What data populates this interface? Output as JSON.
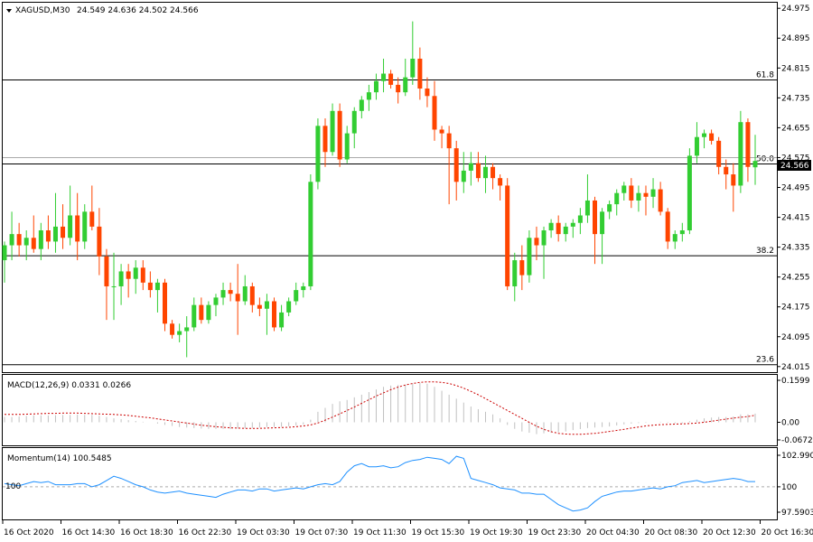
{
  "main": {
    "symbol": "XAGUSD,M30",
    "ohlc": "24.549 24.636 24.502 24.566",
    "current_price": "24.566",
    "price_labels": [
      "24.975",
      "24.895",
      "24.815",
      "24.735",
      "24.655",
      "24.575",
      "24.495",
      "24.415",
      "24.335",
      "24.255",
      "24.175",
      "24.095",
      "24.015"
    ],
    "fib_levels": [
      {
        "label": "61.8",
        "price": 24.783
      },
      {
        "label": "50.0",
        "price": 24.558
      },
      {
        "label": "38.2",
        "price": 24.312
      },
      {
        "label": "23.6",
        "price": 24.02
      }
    ]
  },
  "macd": {
    "title": "MACD(12,26,9) 0.0331 0.0266",
    "labels": [
      "0.1599",
      "0.00",
      "-0.0672"
    ]
  },
  "momentum": {
    "title": "Momentum(14) 100.5485",
    "labels": [
      "102.9903",
      "100",
      "97.5903"
    ],
    "level_label": "100"
  },
  "time_labels": [
    "16 Oct 2020",
    "16 Oct 14:30",
    "16 Oct 18:30",
    "16 Oct 22:30",
    "19 Oct 03:30",
    "19 Oct 07:30",
    "19 Oct 11:30",
    "19 Oct 15:30",
    "19 Oct 19:30",
    "19 Oct 23:30",
    "20 Oct 04:30",
    "20 Oct 08:30",
    "20 Oct 12:30",
    "20 Oct 16:30"
  ],
  "colors": {
    "bull": "#32cd32",
    "bear": "#ff4500",
    "signal": "#cc0000",
    "histogram": "#c0c0c0",
    "momentum": "#1e90ff",
    "frame": "#000000"
  },
  "chart_data": [
    {
      "type": "candlestick",
      "title": "XAGUSD,M30",
      "ylim": [
        24.0,
        24.99
      ],
      "candles": [
        {
          "o": 24.3,
          "h": 24.35,
          "l": 24.24,
          "c": 24.34
        },
        {
          "o": 24.34,
          "h": 24.43,
          "l": 24.3,
          "c": 24.37
        },
        {
          "o": 24.37,
          "h": 24.4,
          "l": 24.31,
          "c": 24.34
        },
        {
          "o": 24.34,
          "h": 24.38,
          "l": 24.3,
          "c": 24.36
        },
        {
          "o": 24.36,
          "h": 24.42,
          "l": 24.32,
          "c": 24.33
        },
        {
          "o": 24.33,
          "h": 24.4,
          "l": 24.3,
          "c": 24.38
        },
        {
          "o": 24.38,
          "h": 24.42,
          "l": 24.33,
          "c": 24.35
        },
        {
          "o": 24.35,
          "h": 24.48,
          "l": 24.32,
          "c": 24.39
        },
        {
          "o": 24.39,
          "h": 24.45,
          "l": 24.33,
          "c": 24.36
        },
        {
          "o": 24.36,
          "h": 24.5,
          "l": 24.34,
          "c": 24.42
        },
        {
          "o": 24.42,
          "h": 24.48,
          "l": 24.3,
          "c": 24.35
        },
        {
          "o": 24.35,
          "h": 24.45,
          "l": 24.33,
          "c": 24.43
        },
        {
          "o": 24.43,
          "h": 24.5,
          "l": 24.38,
          "c": 24.39
        },
        {
          "o": 24.39,
          "h": 24.44,
          "l": 24.26,
          "c": 24.31
        },
        {
          "o": 24.31,
          "h": 24.33,
          "l": 24.14,
          "c": 24.23
        },
        {
          "o": 24.23,
          "h": 24.32,
          "l": 24.14,
          "c": 24.23
        },
        {
          "o": 24.23,
          "h": 24.29,
          "l": 24.18,
          "c": 24.27
        },
        {
          "o": 24.27,
          "h": 24.29,
          "l": 24.2,
          "c": 24.25
        },
        {
          "o": 24.25,
          "h": 24.3,
          "l": 24.21,
          "c": 24.28
        },
        {
          "o": 24.28,
          "h": 24.3,
          "l": 24.22,
          "c": 24.24
        },
        {
          "o": 24.24,
          "h": 24.27,
          "l": 24.2,
          "c": 24.22
        },
        {
          "o": 24.22,
          "h": 24.25,
          "l": 24.16,
          "c": 24.24
        },
        {
          "o": 24.24,
          "h": 24.25,
          "l": 24.11,
          "c": 24.13
        },
        {
          "o": 24.13,
          "h": 24.14,
          "l": 24.09,
          "c": 24.1
        },
        {
          "o": 24.1,
          "h": 24.13,
          "l": 24.08,
          "c": 24.11
        },
        {
          "o": 24.11,
          "h": 24.15,
          "l": 24.04,
          "c": 24.12
        },
        {
          "o": 24.12,
          "h": 24.2,
          "l": 24.11,
          "c": 24.18
        },
        {
          "o": 24.18,
          "h": 24.2,
          "l": 24.13,
          "c": 24.14
        },
        {
          "o": 24.14,
          "h": 24.19,
          "l": 24.13,
          "c": 24.18
        },
        {
          "o": 24.18,
          "h": 24.21,
          "l": 24.15,
          "c": 24.2
        },
        {
          "o": 24.2,
          "h": 24.24,
          "l": 24.18,
          "c": 24.22
        },
        {
          "o": 24.22,
          "h": 24.24,
          "l": 24.19,
          "c": 24.21
        },
        {
          "o": 24.21,
          "h": 24.29,
          "l": 24.1,
          "c": 24.19
        },
        {
          "o": 24.19,
          "h": 24.26,
          "l": 24.18,
          "c": 24.23
        },
        {
          "o": 24.23,
          "h": 24.24,
          "l": 24.16,
          "c": 24.18
        },
        {
          "o": 24.18,
          "h": 24.2,
          "l": 24.15,
          "c": 24.17
        },
        {
          "o": 24.17,
          "h": 24.21,
          "l": 24.1,
          "c": 24.19
        },
        {
          "o": 24.19,
          "h": 24.2,
          "l": 24.11,
          "c": 24.12
        },
        {
          "o": 24.12,
          "h": 24.18,
          "l": 24.11,
          "c": 24.16
        },
        {
          "o": 24.16,
          "h": 24.2,
          "l": 24.15,
          "c": 24.19
        },
        {
          "o": 24.19,
          "h": 24.24,
          "l": 24.18,
          "c": 24.22
        },
        {
          "o": 24.22,
          "h": 24.24,
          "l": 24.2,
          "c": 24.23
        },
        {
          "o": 24.23,
          "h": 24.53,
          "l": 24.22,
          "c": 24.51
        },
        {
          "o": 24.51,
          "h": 24.68,
          "l": 24.49,
          "c": 24.66
        },
        {
          "o": 24.66,
          "h": 24.68,
          "l": 24.55,
          "c": 24.59
        },
        {
          "o": 24.59,
          "h": 24.72,
          "l": 24.58,
          "c": 24.7
        },
        {
          "o": 24.7,
          "h": 24.72,
          "l": 24.55,
          "c": 24.57
        },
        {
          "o": 24.57,
          "h": 24.66,
          "l": 24.56,
          "c": 24.64
        },
        {
          "o": 24.64,
          "h": 24.71,
          "l": 24.6,
          "c": 24.7
        },
        {
          "o": 24.7,
          "h": 24.74,
          "l": 24.68,
          "c": 24.73
        },
        {
          "o": 24.73,
          "h": 24.77,
          "l": 24.7,
          "c": 24.75
        },
        {
          "o": 24.75,
          "h": 24.8,
          "l": 24.73,
          "c": 24.78
        },
        {
          "o": 24.78,
          "h": 24.84,
          "l": 24.75,
          "c": 24.8
        },
        {
          "o": 24.8,
          "h": 24.81,
          "l": 24.76,
          "c": 24.77
        },
        {
          "o": 24.77,
          "h": 24.79,
          "l": 24.72,
          "c": 24.75
        },
        {
          "o": 24.75,
          "h": 24.84,
          "l": 24.74,
          "c": 24.79
        },
        {
          "o": 24.79,
          "h": 24.94,
          "l": 24.77,
          "c": 24.84
        },
        {
          "o": 24.84,
          "h": 24.87,
          "l": 24.73,
          "c": 24.76
        },
        {
          "o": 24.76,
          "h": 24.79,
          "l": 24.71,
          "c": 24.74
        },
        {
          "o": 24.74,
          "h": 24.78,
          "l": 24.62,
          "c": 24.65
        },
        {
          "o": 24.65,
          "h": 24.66,
          "l": 24.6,
          "c": 24.64
        },
        {
          "o": 24.64,
          "h": 24.66,
          "l": 24.45,
          "c": 24.6
        },
        {
          "o": 24.6,
          "h": 24.62,
          "l": 24.46,
          "c": 24.51
        },
        {
          "o": 24.51,
          "h": 24.59,
          "l": 24.48,
          "c": 24.54
        },
        {
          "o": 24.54,
          "h": 24.59,
          "l": 24.5,
          "c": 24.56
        },
        {
          "o": 24.56,
          "h": 24.59,
          "l": 24.51,
          "c": 24.52
        },
        {
          "o": 24.52,
          "h": 24.58,
          "l": 24.48,
          "c": 24.55
        },
        {
          "o": 24.55,
          "h": 24.56,
          "l": 24.49,
          "c": 24.52
        },
        {
          "o": 24.52,
          "h": 24.53,
          "l": 24.46,
          "c": 24.5
        },
        {
          "o": 24.5,
          "h": 24.52,
          "l": 24.22,
          "c": 24.23
        },
        {
          "o": 24.23,
          "h": 24.32,
          "l": 24.19,
          "c": 24.3
        },
        {
          "o": 24.3,
          "h": 24.34,
          "l": 24.22,
          "c": 24.26
        },
        {
          "o": 24.26,
          "h": 24.38,
          "l": 24.24,
          "c": 24.36
        },
        {
          "o": 24.36,
          "h": 24.39,
          "l": 24.3,
          "c": 24.34
        },
        {
          "o": 24.34,
          "h": 24.39,
          "l": 24.25,
          "c": 24.38
        },
        {
          "o": 24.38,
          "h": 24.41,
          "l": 24.36,
          "c": 24.4
        },
        {
          "o": 24.4,
          "h": 24.42,
          "l": 24.35,
          "c": 24.37
        },
        {
          "o": 24.37,
          "h": 24.4,
          "l": 24.35,
          "c": 24.39
        },
        {
          "o": 24.39,
          "h": 24.41,
          "l": 24.36,
          "c": 24.4
        },
        {
          "o": 24.4,
          "h": 24.44,
          "l": 24.37,
          "c": 24.42
        },
        {
          "o": 24.42,
          "h": 24.53,
          "l": 24.4,
          "c": 24.46
        },
        {
          "o": 24.46,
          "h": 24.47,
          "l": 24.29,
          "c": 24.37
        },
        {
          "o": 24.37,
          "h": 24.44,
          "l": 24.29,
          "c": 24.43
        },
        {
          "o": 24.43,
          "h": 24.46,
          "l": 24.41,
          "c": 24.45
        },
        {
          "o": 24.45,
          "h": 24.49,
          "l": 24.42,
          "c": 24.48
        },
        {
          "o": 24.48,
          "h": 24.51,
          "l": 24.46,
          "c": 24.5
        },
        {
          "o": 24.5,
          "h": 24.52,
          "l": 24.44,
          "c": 24.46
        },
        {
          "o": 24.46,
          "h": 24.5,
          "l": 24.43,
          "c": 24.48
        },
        {
          "o": 24.48,
          "h": 24.5,
          "l": 24.42,
          "c": 24.47
        },
        {
          "o": 24.47,
          "h": 24.52,
          "l": 24.44,
          "c": 24.49
        },
        {
          "o": 24.49,
          "h": 24.51,
          "l": 24.42,
          "c": 24.43
        },
        {
          "o": 24.43,
          "h": 24.44,
          "l": 24.33,
          "c": 24.35
        },
        {
          "o": 24.35,
          "h": 24.38,
          "l": 24.33,
          "c": 24.37
        },
        {
          "o": 24.37,
          "h": 24.4,
          "l": 24.35,
          "c": 24.38
        },
        {
          "o": 24.38,
          "h": 24.6,
          "l": 24.37,
          "c": 24.58
        },
        {
          "o": 24.58,
          "h": 24.67,
          "l": 24.56,
          "c": 24.63
        },
        {
          "o": 24.63,
          "h": 24.65,
          "l": 24.6,
          "c": 24.64
        },
        {
          "o": 24.64,
          "h": 24.65,
          "l": 24.61,
          "c": 24.62
        },
        {
          "o": 24.62,
          "h": 24.63,
          "l": 24.53,
          "c": 24.55
        },
        {
          "o": 24.55,
          "h": 24.57,
          "l": 24.49,
          "c": 24.53
        },
        {
          "o": 24.53,
          "h": 24.56,
          "l": 24.43,
          "c": 24.5
        },
        {
          "o": 24.5,
          "h": 24.7,
          "l": 24.48,
          "c": 24.67
        },
        {
          "o": 24.67,
          "h": 24.68,
          "l": 24.51,
          "c": 24.55
        },
        {
          "o": 24.549,
          "h": 24.636,
          "l": 24.502,
          "c": 24.566
        }
      ]
    },
    {
      "type": "bar",
      "title": "MACD(12,26,9) 0.0331 0.0266",
      "ylim": [
        -0.0672,
        0.1599
      ],
      "series": [
        {
          "name": "MACD",
          "values": [
            0.02,
            0.02,
            0.022,
            0.024,
            0.026,
            0.026,
            0.026,
            0.027,
            0.028,
            0.028,
            0.029,
            0.028,
            0.028,
            0.025,
            0.02,
            0.015,
            0.012,
            0.008,
            0.005,
            0.002,
            0.0,
            -0.005,
            -0.01,
            -0.014,
            -0.018,
            -0.02,
            -0.022,
            -0.024,
            -0.025,
            -0.025,
            -0.025,
            -0.026,
            -0.024,
            -0.023,
            -0.022,
            -0.02,
            -0.018,
            -0.018,
            -0.017,
            -0.015,
            -0.012,
            -0.008,
            0.01,
            0.04,
            0.055,
            0.07,
            0.08,
            0.085,
            0.095,
            0.105,
            0.115,
            0.125,
            0.135,
            0.14,
            0.142,
            0.143,
            0.148,
            0.15,
            0.147,
            0.135,
            0.12,
            0.105,
            0.09,
            0.075,
            0.06,
            0.05,
            0.04,
            0.03,
            0.015,
            -0.01,
            -0.025,
            -0.035,
            -0.04,
            -0.045,
            -0.042,
            -0.04,
            -0.038,
            -0.035,
            -0.03,
            -0.026,
            -0.022,
            -0.02,
            -0.018,
            -0.016,
            -0.012,
            -0.008,
            -0.005,
            -0.003,
            -0.002,
            0.0,
            0.002,
            -0.002,
            -0.004,
            -0.004,
            0.004,
            0.01,
            0.015,
            0.018,
            0.02,
            0.02,
            0.022,
            0.03,
            0.03,
            0.0331
          ]
        },
        {
          "name": "Signal",
          "values": [
            0.03,
            0.03,
            0.03,
            0.031,
            0.032,
            0.033,
            0.034,
            0.034,
            0.035,
            0.035,
            0.035,
            0.034,
            0.033,
            0.032,
            0.031,
            0.03,
            0.028,
            0.026,
            0.023,
            0.02,
            0.017,
            0.013,
            0.009,
            0.005,
            0.001,
            -0.003,
            -0.007,
            -0.011,
            -0.014,
            -0.017,
            -0.019,
            -0.021,
            -0.022,
            -0.023,
            -0.023,
            -0.023,
            -0.022,
            -0.021,
            -0.02,
            -0.019,
            -0.017,
            -0.014,
            -0.01,
            -0.003,
            0.008,
            0.02,
            0.032,
            0.045,
            0.058,
            0.072,
            0.086,
            0.1,
            0.112,
            0.124,
            0.134,
            0.142,
            0.148,
            0.152,
            0.154,
            0.154,
            0.152,
            0.148,
            0.14,
            0.13,
            0.118,
            0.105,
            0.09,
            0.075,
            0.06,
            0.045,
            0.03,
            0.015,
            0.0,
            -0.015,
            -0.027,
            -0.036,
            -0.042,
            -0.045,
            -0.046,
            -0.046,
            -0.044,
            -0.042,
            -0.039,
            -0.035,
            -0.031,
            -0.027,
            -0.022,
            -0.018,
            -0.014,
            -0.011,
            -0.009,
            -0.008,
            -0.007,
            -0.006,
            -0.005,
            -0.003,
            0.0,
            0.004,
            0.008,
            0.012,
            0.016,
            0.019,
            0.022,
            0.0266
          ]
        }
      ]
    },
    {
      "type": "line",
      "title": "Momentum(14) 100.5485",
      "ylim": [
        97.5903,
        102.9903
      ],
      "series": [
        {
          "name": "Momentum",
          "values": [
            100.3,
            100.2,
            100.1,
            100.3,
            100.5,
            100.4,
            100.5,
            100.2,
            100.2,
            100.2,
            100.3,
            100.3,
            100.0,
            100.2,
            100.6,
            101.0,
            100.8,
            100.5,
            100.2,
            100.0,
            99.7,
            99.5,
            99.4,
            99.5,
            99.6,
            99.4,
            99.3,
            99.2,
            99.1,
            99.0,
            99.3,
            99.5,
            99.7,
            99.7,
            99.6,
            99.8,
            99.8,
            99.6,
            99.7,
            99.8,
            99.9,
            99.8,
            100.0,
            100.2,
            100.3,
            100.2,
            100.5,
            101.4,
            102.0,
            102.2,
            101.9,
            101.9,
            102.0,
            101.8,
            101.9,
            102.3,
            102.5,
            102.6,
            102.8,
            102.7,
            102.6,
            102.2,
            102.9,
            102.7,
            100.8,
            100.6,
            100.4,
            100.2,
            99.9,
            99.8,
            99.7,
            99.4,
            99.4,
            99.3,
            99.3,
            98.8,
            98.3,
            98.0,
            97.7,
            97.8,
            98.0,
            98.6,
            99.1,
            99.3,
            99.5,
            99.6,
            99.6,
            99.7,
            99.8,
            99.9,
            99.8,
            100.0,
            100.1,
            100.4,
            100.5,
            100.6,
            100.4,
            100.5,
            100.6,
            100.7,
            100.8,
            100.7,
            100.5,
            100.5
          ]
        }
      ]
    }
  ]
}
